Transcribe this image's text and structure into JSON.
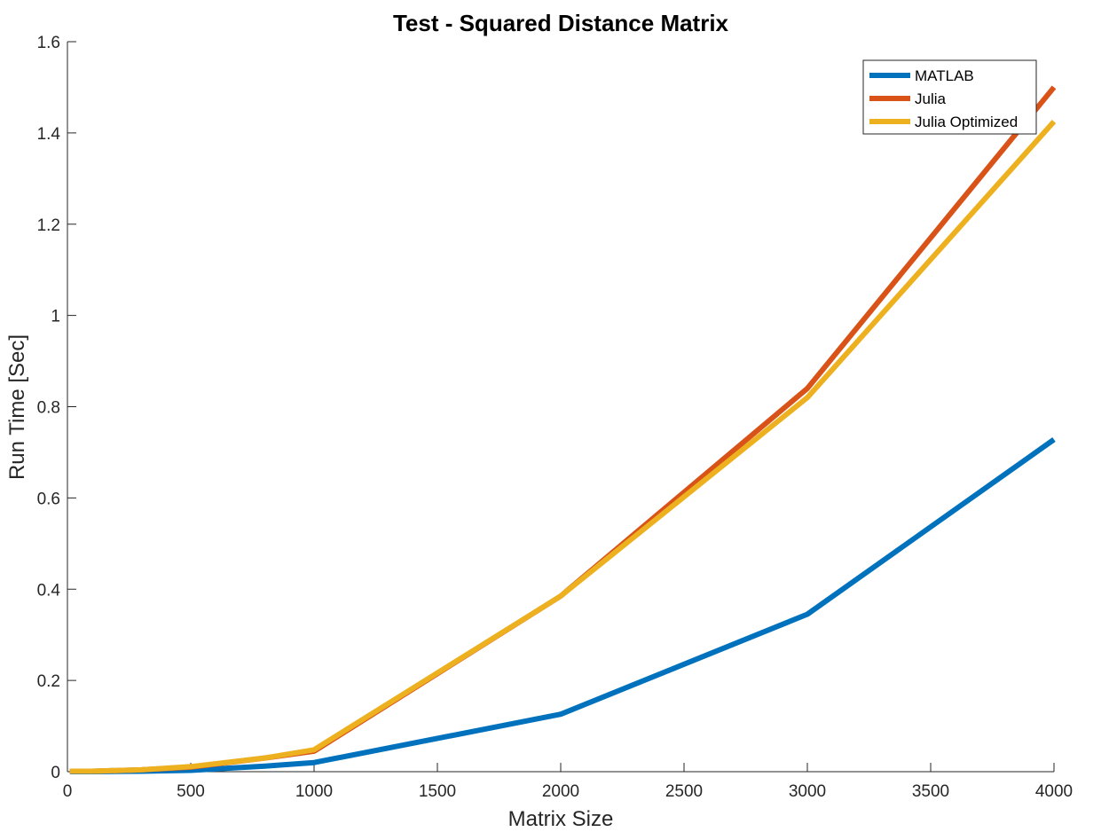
{
  "chart_data": {
    "type": "line",
    "title": "Test - Squared Distance Matrix",
    "xlabel": "Matrix Size",
    "ylabel": "Run Time  [Sec]",
    "xlim": [
      0,
      4000
    ],
    "ylim": [
      0,
      1.6
    ],
    "xticks": [
      "0",
      "500",
      "1000",
      "1500",
      "2000",
      "2500",
      "3000",
      "3500",
      "4000"
    ],
    "yticks": [
      "0",
      "0.2",
      "0.4",
      "0.6",
      "0.8",
      "1",
      "1.2",
      "1.4",
      "1.6"
    ],
    "grid": false,
    "legend_position": "top-right",
    "x": [
      10,
      100,
      300,
      500,
      800,
      1000,
      2000,
      3000,
      4000
    ],
    "series": [
      {
        "name": "MATLAB",
        "color": "#0072BD",
        "values": [
          0.0,
          0.0,
          0.001,
          0.003,
          0.012,
          0.02,
          0.126,
          0.345,
          0.728
        ]
      },
      {
        "name": "Julia",
        "color": "#D95319",
        "values": [
          0.001,
          0.001,
          0.004,
          0.01,
          0.03,
          0.045,
          0.385,
          0.84,
          1.5
        ]
      },
      {
        "name": "Julia Optimized",
        "color": "#EDB120",
        "values": [
          0.001,
          0.001,
          0.004,
          0.011,
          0.03,
          0.048,
          0.385,
          0.82,
          1.425
        ]
      }
    ]
  }
}
